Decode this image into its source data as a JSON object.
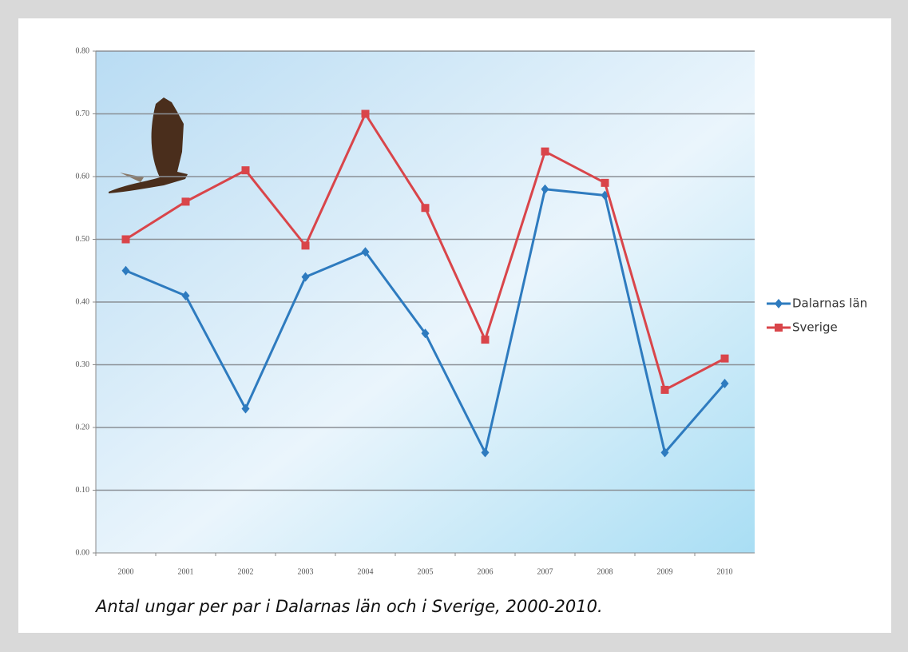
{
  "chart_data": {
    "type": "line",
    "caption": "Antal ungar per par i Dalarnas län och i Sverige, 2000-2010.",
    "categories": [
      "2000",
      "2001",
      "2002",
      "2003",
      "2004",
      "2005",
      "2006",
      "2007",
      "2008",
      "2009",
      "2010"
    ],
    "series": [
      {
        "name": "Dalarnas län",
        "color": "#2e7bbf",
        "marker": "diamond",
        "values": [
          0.45,
          0.41,
          0.23,
          0.44,
          0.48,
          0.35,
          0.16,
          0.58,
          0.57,
          0.16,
          0.27
        ]
      },
      {
        "name": "Sverige",
        "color": "#d9454a",
        "marker": "square",
        "values": [
          0.5,
          0.56,
          0.61,
          0.49,
          0.7,
          0.55,
          0.34,
          0.64,
          0.59,
          0.26,
          0.31
        ]
      }
    ],
    "ylim": [
      0,
      0.8
    ],
    "yticks": [
      {
        "value": 0,
        "label": "0.00"
      },
      {
        "value": 0.1,
        "label": "0.10"
      },
      {
        "value": 0.2,
        "label": "0.20"
      },
      {
        "value": 0.3,
        "label": "0.30"
      },
      {
        "value": 0.4,
        "label": "0.40"
      },
      {
        "value": 0.5,
        "label": "0.50"
      },
      {
        "value": 0.6,
        "label": "0.60"
      },
      {
        "value": 0.7,
        "label": "0.70"
      },
      {
        "value": 0.8,
        "label": "0.80"
      }
    ],
    "grid": true,
    "legend": "right"
  }
}
